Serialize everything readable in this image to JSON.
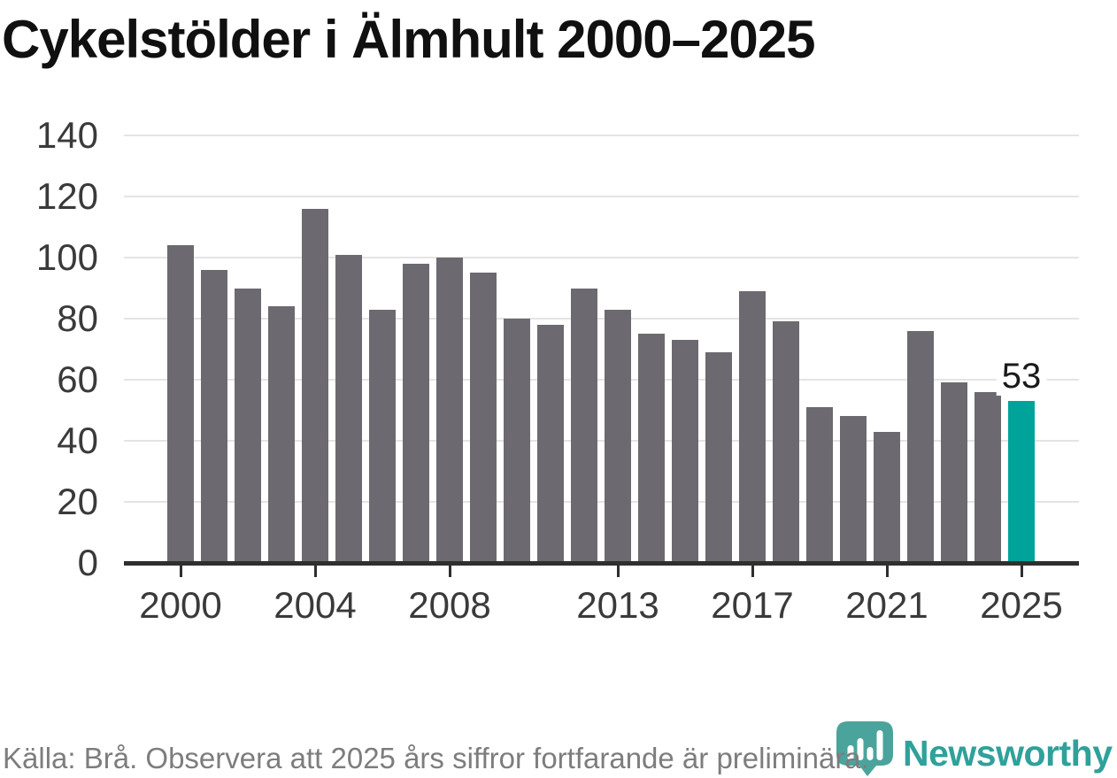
{
  "title": "Cykelstölder i Älmhult 2000–2025",
  "annotation": {
    "label": "53"
  },
  "footer": {
    "source_note": "Källa: Brå. Observera att 2025 års siffror fortfarande är preliminära.",
    "branding": {
      "name": "Newsworthy",
      "icon": "newsworthy-pin-icon",
      "icon_color": "#4BA49C",
      "icon_bar_color": "#FFFFFF",
      "text_color": "#2FA19A"
    }
  },
  "colors": {
    "background": "#FFFFFF",
    "bar": "#6C6A70",
    "highlight": "#00A39A",
    "gridline": "#E4E4E4",
    "axis": "#2F2F2F",
    "tick_label": "#3A3A3A",
    "title": "#101010",
    "source_text": "#7D7D7D"
  },
  "chart_data": {
    "type": "bar",
    "title": "Cykelstölder i Älmhult 2000–2025",
    "xlabel": "",
    "ylabel": "",
    "categories": [
      2000,
      2001,
      2002,
      2003,
      2004,
      2005,
      2006,
      2007,
      2008,
      2009,
      2010,
      2011,
      2012,
      2013,
      2014,
      2015,
      2016,
      2017,
      2018,
      2019,
      2020,
      2021,
      2022,
      2023,
      2024,
      2025
    ],
    "values": [
      104,
      96,
      90,
      84,
      116,
      101,
      83,
      98,
      100,
      95,
      80,
      78,
      90,
      83,
      75,
      73,
      69,
      89,
      79,
      51,
      48,
      43,
      76,
      59,
      56,
      53
    ],
    "highlight": {
      "category": 2025,
      "value": 53,
      "label": "53",
      "color": "#00A39A"
    },
    "bar_color": "#6C6A70",
    "ylim": [
      0,
      140
    ],
    "yticks": [
      0,
      20,
      40,
      60,
      80,
      100,
      120,
      140
    ],
    "xticks": [
      2000,
      2004,
      2008,
      2013,
      2017,
      2021,
      2025
    ],
    "grid": true,
    "legend": false,
    "source": "Källa: Brå. Observera att 2025 års siffror fortfarande är preliminära."
  }
}
